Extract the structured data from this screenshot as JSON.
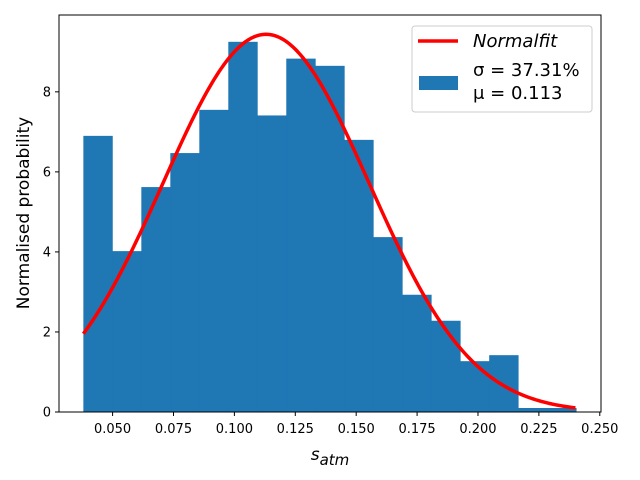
{
  "chart_data": {
    "type": "bar",
    "xlabel": "s_atm",
    "xlabel_main": "s",
    "xlabel_sub": "atm",
    "ylabel": "Normalised probability",
    "xlim": [
      0.028,
      0.2505
    ],
    "ylim": [
      0,
      9.92
    ],
    "xticks": [
      "0.050",
      "0.075",
      "0.100",
      "0.125",
      "0.150",
      "0.175",
      "0.200",
      "0.225",
      "0.250"
    ],
    "yticks": [
      "0",
      "2",
      "4",
      "6",
      "8"
    ],
    "bin_edges": [
      0.038,
      0.0499,
      0.0618,
      0.0737,
      0.0856,
      0.0975,
      0.1094,
      0.1213,
      0.1332,
      0.1451,
      0.157,
      0.1689,
      0.1808,
      0.1927,
      0.2046,
      0.2165,
      0.2284,
      0.2403
    ],
    "values": [
      6.9,
      4.02,
      5.62,
      6.47,
      7.55,
      9.25,
      7.41,
      8.83,
      8.65,
      6.8,
      4.37,
      2.93,
      2.28,
      1.27,
      1.42,
      0.1,
      0.1
    ],
    "bar_color": "#1f77b4",
    "fit": {
      "name": "Normalfit",
      "mu": 0.113,
      "sigma": 0.04227,
      "x_range": [
        0.038,
        0.24
      ],
      "color": "#ff0000"
    },
    "legend": {
      "position": "top-right",
      "line_label": "Normalfit",
      "bar_label_line1": "σ = 37.31%",
      "bar_label_line2": "μ = 0.113"
    },
    "grid": false
  }
}
